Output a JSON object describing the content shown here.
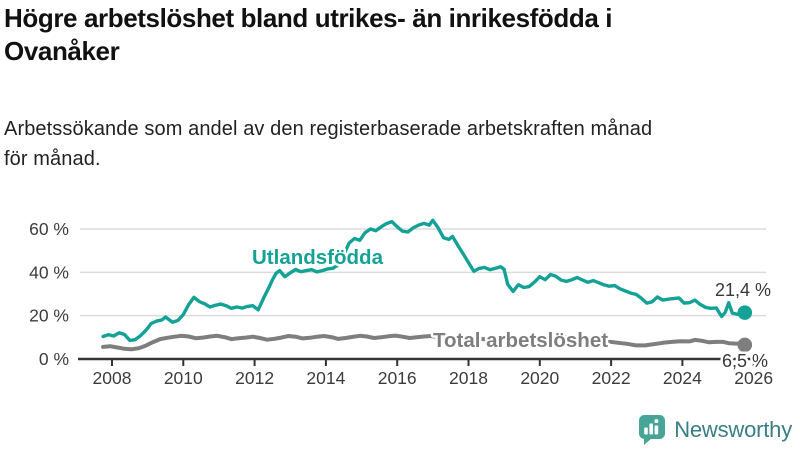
{
  "header": {
    "title_lines": [
      "Högre arbetslöshet bland utrikes- än inrikesfödda i",
      "Ovanåker"
    ],
    "subtitle_lines": [
      "Arbetssökande som andel av den registerbaserade arbetskraften månad",
      "för månad."
    ]
  },
  "chart_data": {
    "type": "line",
    "title": "Högre arbetslöshet bland utrikes- än inrikesfödda i Ovanåker",
    "subtitle": "Arbetssökande som andel av den registerbaserade arbetskraften månad för månad.",
    "unit": "%",
    "grid": true,
    "legend_position": "inline-labels-on-lines",
    "x_axis": {
      "tick_years": [
        2008,
        2010,
        2012,
        2014,
        2016,
        2018,
        2020,
        2022,
        2024,
        2026
      ],
      "tick_labels": [
        "2008",
        "2010",
        "2012",
        "2014",
        "2016",
        "2018",
        "2020",
        "2022",
        "2024",
        "2026"
      ],
      "range_years": [
        2007.75,
        2026.4
      ]
    },
    "y_axis": {
      "ticks": [
        0,
        20,
        40,
        60
      ],
      "tick_labels": [
        "0 %",
        "20 %",
        "40 %",
        "60 %"
      ],
      "max": 66
    },
    "series": [
      {
        "name": "Utlandsfödda",
        "color": "#13a295",
        "end_value": 21.4,
        "end_value_label": "21,4 %",
        "points": [
          [
            2007.75,
            10.4
          ],
          [
            2007.9,
            11.2
          ],
          [
            2008.05,
            10.6
          ],
          [
            2008.2,
            12.1
          ],
          [
            2008.35,
            11.3
          ],
          [
            2008.5,
            8.6
          ],
          [
            2008.65,
            8.9
          ],
          [
            2008.8,
            10.8
          ],
          [
            2008.95,
            13.2
          ],
          [
            2009.1,
            16.4
          ],
          [
            2009.25,
            17.5
          ],
          [
            2009.4,
            18.0
          ],
          [
            2009.5,
            19.4
          ],
          [
            2009.6,
            18.2
          ],
          [
            2009.7,
            17.0
          ],
          [
            2009.85,
            17.8
          ],
          [
            2010.0,
            20.5
          ],
          [
            2010.15,
            25.0
          ],
          [
            2010.3,
            28.5
          ],
          [
            2010.45,
            26.5
          ],
          [
            2010.6,
            25.5
          ],
          [
            2010.75,
            24.0
          ],
          [
            2010.9,
            24.8
          ],
          [
            2011.05,
            25.4
          ],
          [
            2011.2,
            24.6
          ],
          [
            2011.35,
            23.4
          ],
          [
            2011.5,
            24.0
          ],
          [
            2011.65,
            23.5
          ],
          [
            2011.8,
            24.3
          ],
          [
            2011.95,
            24.6
          ],
          [
            2012.1,
            22.7
          ],
          [
            2012.25,
            28.0
          ],
          [
            2012.4,
            33.0
          ],
          [
            2012.5,
            36.5
          ],
          [
            2012.6,
            39.5
          ],
          [
            2012.7,
            40.8
          ],
          [
            2012.85,
            38.0
          ],
          [
            2013.0,
            39.8
          ],
          [
            2013.15,
            41.3
          ],
          [
            2013.3,
            40.3
          ],
          [
            2013.45,
            40.8
          ],
          [
            2013.6,
            41.2
          ],
          [
            2013.75,
            40.2
          ],
          [
            2013.9,
            40.8
          ],
          [
            2014.05,
            41.6
          ],
          [
            2014.2,
            41.9
          ],
          [
            2014.35,
            43.5
          ],
          [
            2014.5,
            48.0
          ],
          [
            2014.65,
            53.5
          ],
          [
            2014.8,
            55.6
          ],
          [
            2014.95,
            54.8
          ],
          [
            2015.1,
            58.3
          ],
          [
            2015.25,
            60.0
          ],
          [
            2015.4,
            59.2
          ],
          [
            2015.55,
            61.0
          ],
          [
            2015.7,
            62.5
          ],
          [
            2015.85,
            63.4
          ],
          [
            2016.0,
            61.0
          ],
          [
            2016.15,
            59.0
          ],
          [
            2016.3,
            58.6
          ],
          [
            2016.45,
            60.5
          ],
          [
            2016.6,
            61.8
          ],
          [
            2016.75,
            62.6
          ],
          [
            2016.9,
            61.8
          ],
          [
            2017.0,
            64.0
          ],
          [
            2017.15,
            60.5
          ],
          [
            2017.3,
            56.0
          ],
          [
            2017.45,
            55.2
          ],
          [
            2017.55,
            56.6
          ],
          [
            2017.7,
            52.5
          ],
          [
            2017.85,
            48.5
          ],
          [
            2018.0,
            44.5
          ],
          [
            2018.15,
            40.5
          ],
          [
            2018.3,
            41.8
          ],
          [
            2018.45,
            42.3
          ],
          [
            2018.6,
            41.2
          ],
          [
            2018.75,
            41.8
          ],
          [
            2018.9,
            42.6
          ],
          [
            2019.0,
            41.4
          ],
          [
            2019.1,
            34.5
          ],
          [
            2019.25,
            31.2
          ],
          [
            2019.4,
            34.3
          ],
          [
            2019.55,
            33.0
          ],
          [
            2019.7,
            33.4
          ],
          [
            2019.85,
            35.5
          ],
          [
            2020.0,
            38.0
          ],
          [
            2020.15,
            36.6
          ],
          [
            2020.3,
            39.0
          ],
          [
            2020.45,
            38.2
          ],
          [
            2020.6,
            36.4
          ],
          [
            2020.75,
            35.8
          ],
          [
            2020.9,
            36.6
          ],
          [
            2021.05,
            37.6
          ],
          [
            2021.2,
            36.4
          ],
          [
            2021.35,
            35.4
          ],
          [
            2021.5,
            36.2
          ],
          [
            2021.65,
            35.2
          ],
          [
            2021.8,
            34.2
          ],
          [
            2021.95,
            33.6
          ],
          [
            2022.1,
            33.9
          ],
          [
            2022.25,
            32.4
          ],
          [
            2022.4,
            31.4
          ],
          [
            2022.55,
            30.4
          ],
          [
            2022.7,
            29.8
          ],
          [
            2022.85,
            28.0
          ],
          [
            2023.0,
            25.8
          ],
          [
            2023.15,
            26.4
          ],
          [
            2023.3,
            28.6
          ],
          [
            2023.45,
            27.2
          ],
          [
            2023.6,
            27.6
          ],
          [
            2023.75,
            27.9
          ],
          [
            2023.9,
            28.2
          ],
          [
            2024.05,
            25.8
          ],
          [
            2024.2,
            26.0
          ],
          [
            2024.35,
            27.2
          ],
          [
            2024.5,
            25.2
          ],
          [
            2024.65,
            23.8
          ],
          [
            2024.8,
            23.4
          ],
          [
            2024.95,
            23.6
          ],
          [
            2025.1,
            19.6
          ],
          [
            2025.2,
            21.5
          ],
          [
            2025.3,
            26.0
          ],
          [
            2025.4,
            21.2
          ],
          [
            2025.55,
            20.6
          ],
          [
            2025.65,
            22.0
          ],
          [
            2025.75,
            21.4
          ]
        ]
      },
      {
        "name": "Total arbetslöshet",
        "color": "#7e7e7e",
        "end_value": 6.5,
        "end_value_label": "6,5 %",
        "points": [
          [
            2007.75,
            5.6
          ],
          [
            2007.95,
            5.9
          ],
          [
            2008.15,
            5.3
          ],
          [
            2008.35,
            4.7
          ],
          [
            2008.55,
            4.5
          ],
          [
            2008.75,
            5.0
          ],
          [
            2008.95,
            6.2
          ],
          [
            2009.15,
            7.8
          ],
          [
            2009.35,
            9.2
          ],
          [
            2009.55,
            9.8
          ],
          [
            2009.75,
            10.3
          ],
          [
            2009.95,
            10.7
          ],
          [
            2010.15,
            10.4
          ],
          [
            2010.35,
            9.6
          ],
          [
            2010.55,
            9.9
          ],
          [
            2010.75,
            10.4
          ],
          [
            2010.95,
            10.7
          ],
          [
            2011.15,
            10.1
          ],
          [
            2011.35,
            9.2
          ],
          [
            2011.55,
            9.6
          ],
          [
            2011.75,
            9.9
          ],
          [
            2011.95,
            10.3
          ],
          [
            2012.15,
            9.7
          ],
          [
            2012.35,
            8.9
          ],
          [
            2012.55,
            9.3
          ],
          [
            2012.75,
            9.9
          ],
          [
            2012.95,
            10.6
          ],
          [
            2013.15,
            10.3
          ],
          [
            2013.35,
            9.5
          ],
          [
            2013.55,
            9.8
          ],
          [
            2013.75,
            10.3
          ],
          [
            2013.95,
            10.6
          ],
          [
            2014.15,
            10.1
          ],
          [
            2014.35,
            9.3
          ],
          [
            2014.55,
            9.7
          ],
          [
            2014.75,
            10.2
          ],
          [
            2014.95,
            10.7
          ],
          [
            2015.15,
            10.4
          ],
          [
            2015.35,
            9.7
          ],
          [
            2015.55,
            10.0
          ],
          [
            2015.75,
            10.5
          ],
          [
            2015.95,
            10.8
          ],
          [
            2016.15,
            10.3
          ],
          [
            2016.35,
            9.7
          ],
          [
            2016.55,
            10.0
          ],
          [
            2016.75,
            10.4
          ],
          [
            2016.95,
            10.6
          ],
          [
            2017.15,
            10.1
          ],
          [
            2017.35,
            9.5
          ],
          [
            2017.55,
            9.7
          ],
          [
            2017.75,
            10.0
          ],
          [
            2017.95,
            10.1
          ],
          [
            2018.2,
            9.4
          ],
          [
            2018.45,
            9.1
          ],
          [
            2018.7,
            9.3
          ],
          [
            2018.95,
            9.6
          ],
          [
            2019.2,
            9.3
          ],
          [
            2019.45,
            9.0
          ],
          [
            2019.7,
            9.3
          ],
          [
            2019.95,
            9.7
          ],
          [
            2020.2,
            10.2
          ],
          [
            2020.45,
            10.5
          ],
          [
            2020.7,
            10.1
          ],
          [
            2020.95,
            9.7
          ],
          [
            2021.2,
            9.3
          ],
          [
            2021.45,
            8.8
          ],
          [
            2021.7,
            8.4
          ],
          [
            2021.95,
            8.0
          ],
          [
            2022.2,
            7.5
          ],
          [
            2022.45,
            7.0
          ],
          [
            2022.7,
            6.3
          ],
          [
            2022.95,
            6.3
          ],
          [
            2023.2,
            6.9
          ],
          [
            2023.45,
            7.5
          ],
          [
            2023.7,
            7.9
          ],
          [
            2023.95,
            8.2
          ],
          [
            2024.2,
            8.1
          ],
          [
            2024.35,
            8.8
          ],
          [
            2024.55,
            8.4
          ],
          [
            2024.75,
            7.7
          ],
          [
            2024.95,
            7.9
          ],
          [
            2025.15,
            7.9
          ],
          [
            2025.3,
            7.3
          ],
          [
            2025.5,
            7.1
          ],
          [
            2025.65,
            7.3
          ],
          [
            2025.75,
            6.5
          ]
        ]
      }
    ]
  },
  "colors": {
    "accent_teal": "#13a295",
    "series_gray": "#7e7e7e",
    "gridline": "#dcdcdc",
    "axis": "#333333",
    "tick_text": "#3c3c3c",
    "end_label_text": "#383838",
    "logo_bubble": "#48a497",
    "logo_wordmark": "#397e84"
  },
  "footer": {
    "brand": "Newsworthy",
    "logo_icon": "bar-chart-speech-bubble-icon"
  }
}
